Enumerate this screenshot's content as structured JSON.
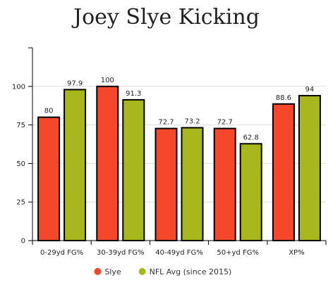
{
  "chart_data": {
    "type": "bar",
    "title": "Joey Slye Kicking",
    "xlabel": "",
    "ylabel": "",
    "categories": [
      "0-29yd FG%",
      "30-39yd FG%",
      "40-49yd FG%",
      "50+yd FG%",
      "XP%"
    ],
    "series": [
      {
        "name": "Slye",
        "color": "#f4472b",
        "values": [
          80,
          100,
          72.7,
          72.7,
          88.6
        ],
        "labels": [
          "80",
          "100",
          "72.7",
          "72.7",
          "88.6"
        ]
      },
      {
        "name": "NFL Avg (since 2015)",
        "color": "#a9b71f",
        "values": [
          97.9,
          91.3,
          73.2,
          62.8,
          94
        ],
        "labels": [
          "97.9",
          "91.3",
          "73.2",
          "62.8",
          "94"
        ]
      }
    ],
    "ylim": [
      0,
      125
    ],
    "yticks": [
      0,
      25,
      50,
      75,
      100
    ],
    "ytick_labels": [
      "0",
      "25",
      "50",
      "75",
      "100"
    ],
    "grid": true,
    "legend_position": "bottom-center"
  }
}
